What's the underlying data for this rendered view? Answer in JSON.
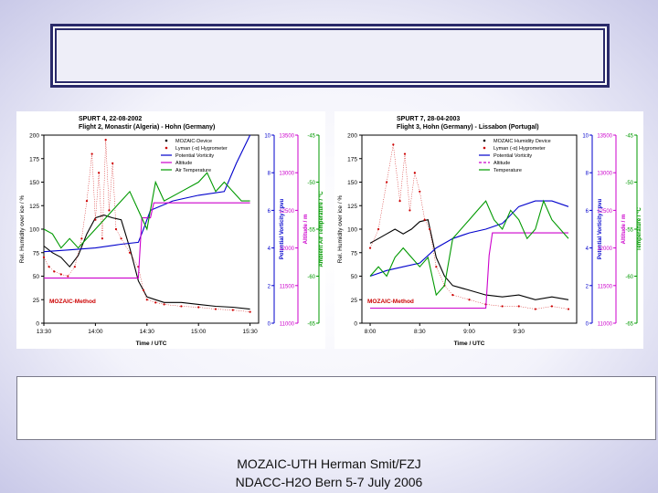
{
  "footer": {
    "line1": "MOZAIC-UTH Herman Smit/FZJ",
    "line2": "NDACC-H2O Bern 5-7 July 2006"
  },
  "chart_data": [
    {
      "type": "line",
      "title": "SPURT 4, 22-08-2002",
      "subtitle": "Flight 2, Monastir (Algeria) - Hohn (Germany)",
      "xlabel": "Time / UTC",
      "x_ticks": [
        "13:30",
        "14:00",
        "14:30",
        "15:00",
        "15:30"
      ],
      "xlim": [
        "13:30",
        "15:35"
      ],
      "annotation": "MOZAIC-Method",
      "axes": {
        "rh": {
          "label": "Rel. Humidity over ice / %",
          "lim": [
            0,
            200
          ],
          "ticks": [
            0,
            25,
            50,
            75,
            100,
            125,
            150,
            175,
            200
          ],
          "color": "#000000"
        },
        "pv": {
          "label": "Potential Vorticity / pvu",
          "lim": [
            0,
            10
          ],
          "ticks": [
            0,
            2,
            4,
            6,
            8,
            10
          ],
          "color": "#0000cc"
        },
        "alt": {
          "label": "Altitude / m",
          "lim": [
            11000,
            13500
          ],
          "ticks": [
            11000,
            11500,
            12000,
            12500,
            13000,
            13500
          ],
          "color": "#cc00cc"
        },
        "temp": {
          "label": "Ambient Air Temperature / °C",
          "lim": [
            -65,
            -45
          ],
          "ticks": [
            -65,
            -60,
            -55,
            -50,
            -45
          ],
          "color": "#009900"
        }
      },
      "legend": {
        "placement": "top-right",
        "entries": [
          {
            "label": "MOZAIC-Device",
            "style": "dot",
            "color": "#000000"
          },
          {
            "label": "Lyman (-α) Hygrometer",
            "style": "dot",
            "color": "#cc0000"
          },
          {
            "label": "Potential Vorticity",
            "style": "line",
            "color": "#0000cc"
          },
          {
            "label": "Altitude",
            "style": "line",
            "color": "#cc00cc"
          },
          {
            "label": "Air Temperature",
            "style": "line",
            "color": "#009900"
          }
        ]
      },
      "series": [
        {
          "key": "mozaic",
          "axis": "rh",
          "color": "#000000",
          "style": "line",
          "x": [
            "13:30",
            "13:35",
            "13:40",
            "13:45",
            "13:50",
            "13:55",
            "14:00",
            "14:05",
            "14:10",
            "14:15",
            "14:20",
            "14:25",
            "14:30",
            "14:35",
            "14:40",
            "14:50",
            "15:00",
            "15:10",
            "15:20",
            "15:30"
          ],
          "y": [
            82,
            75,
            70,
            60,
            72,
            95,
            112,
            115,
            112,
            110,
            80,
            45,
            28,
            25,
            22,
            22,
            20,
            18,
            17,
            15
          ]
        },
        {
          "key": "lyman",
          "axis": "rh",
          "color": "#cc0000",
          "style": "dots",
          "x": [
            "13:30",
            "13:33",
            "13:36",
            "13:40",
            "13:44",
            "13:48",
            "13:52",
            "13:55",
            "13:58",
            "14:00",
            "14:02",
            "14:04",
            "14:06",
            "14:08",
            "14:10",
            "14:12",
            "14:15",
            "14:20",
            "14:25",
            "14:28",
            "14:30",
            "14:35",
            "14:40",
            "14:50",
            "15:00",
            "15:10",
            "15:20",
            "15:30"
          ],
          "y": [
            70,
            60,
            55,
            52,
            50,
            60,
            90,
            130,
            180,
            110,
            160,
            90,
            195,
            120,
            170,
            100,
            90,
            75,
            60,
            35,
            25,
            22,
            20,
            18,
            17,
            15,
            14,
            12
          ]
        },
        {
          "key": "pv",
          "axis": "pv",
          "color": "#0000cc",
          "style": "line",
          "x": [
            "13:30",
            "13:45",
            "14:00",
            "14:15",
            "14:25",
            "14:28",
            "14:32",
            "14:45",
            "15:00",
            "15:15",
            "15:22",
            "15:30"
          ],
          "y": [
            3.8,
            3.9,
            4.0,
            4.2,
            4.3,
            5.0,
            6.0,
            6.5,
            6.8,
            7.0,
            8.5,
            10.0
          ]
        },
        {
          "key": "alt",
          "axis": "alt",
          "color": "#cc00cc",
          "style": "line",
          "x": [
            "13:30",
            "14:00",
            "14:25",
            "14:27",
            "14:32",
            "14:34",
            "15:30"
          ],
          "y": [
            11600,
            11600,
            11600,
            12400,
            12400,
            12600,
            12600
          ]
        },
        {
          "key": "temp",
          "axis": "temp",
          "color": "#009900",
          "style": "line",
          "x": [
            "13:30",
            "13:35",
            "13:40",
            "13:45",
            "13:50",
            "13:55",
            "14:00",
            "14:05",
            "14:10",
            "14:15",
            "14:20",
            "14:25",
            "14:30",
            "14:35",
            "14:40",
            "14:50",
            "15:00",
            "15:05",
            "15:10",
            "15:15",
            "15:20",
            "15:25",
            "15:30"
          ],
          "y": [
            -55,
            -55.5,
            -57,
            -56,
            -57,
            -56,
            -55,
            -54,
            -53,
            -52,
            -51,
            -53,
            -55,
            -50,
            -52,
            -51,
            -50,
            -49,
            -51,
            -50,
            -51,
            -52,
            -52
          ]
        }
      ]
    },
    {
      "type": "line",
      "title": "SPURT 7, 28-04-2003",
      "subtitle": "Flight 3, Hohn (Germany) - Lissabon (Portugal)",
      "xlabel": "Time / UTC",
      "x_ticks": [
        "8:00",
        "8:30",
        "9:00",
        "9:30"
      ],
      "xlim": [
        "7:55",
        "10:05"
      ],
      "annotation": "MOZAIC-Method",
      "axes": {
        "rh": {
          "label": "Rel. Humidity over ice / %",
          "lim": [
            0,
            200
          ],
          "ticks": [
            0,
            25,
            50,
            75,
            100,
            125,
            150,
            175,
            200
          ],
          "color": "#000000"
        },
        "pv": {
          "label": "Potential Vorticity / pvu",
          "lim": [
            0,
            10
          ],
          "ticks": [
            0,
            2,
            4,
            6,
            8,
            10
          ],
          "color": "#0000cc"
        },
        "alt": {
          "label": "Altitude / m",
          "lim": [
            11000,
            13500
          ],
          "ticks": [
            11000,
            11500,
            12000,
            12500,
            13000,
            13500
          ],
          "color": "#cc00cc"
        },
        "temp": {
          "label": "Temperature / °C",
          "lim": [
            -65,
            -45
          ],
          "ticks": [
            -65,
            -60,
            -55,
            -50,
            -45
          ],
          "color": "#009900"
        }
      },
      "legend": {
        "placement": "top-right",
        "entries": [
          {
            "label": "MOZAIC Humidity Device",
            "style": "dot",
            "color": "#000000"
          },
          {
            "label": "Lyman (-α) Hygrometer",
            "style": "dot",
            "color": "#cc0000"
          },
          {
            "label": "Potential Vorticity",
            "style": "line",
            "color": "#0000cc"
          },
          {
            "label": "Altitude",
            "style": "dash",
            "color": "#cc00cc"
          },
          {
            "label": "Temperature",
            "style": "line",
            "color": "#009900"
          }
        ]
      },
      "series": [
        {
          "key": "mozaic",
          "axis": "rh",
          "color": "#000000",
          "style": "line",
          "x": [
            "8:00",
            "8:05",
            "8:10",
            "8:15",
            "8:20",
            "8:25",
            "8:30",
            "8:35",
            "8:40",
            "8:45",
            "8:50",
            "9:00",
            "9:10",
            "9:20",
            "9:30",
            "9:40",
            "9:50",
            "10:00"
          ],
          "y": [
            85,
            90,
            95,
            100,
            95,
            100,
            108,
            110,
            70,
            50,
            40,
            35,
            30,
            28,
            30,
            25,
            28,
            25
          ]
        },
        {
          "key": "lyman",
          "axis": "rh",
          "color": "#cc0000",
          "style": "dots",
          "x": [
            "8:00",
            "8:05",
            "8:10",
            "8:14",
            "8:18",
            "8:21",
            "8:24",
            "8:27",
            "8:30",
            "8:33",
            "8:36",
            "8:40",
            "8:45",
            "8:50",
            "9:00",
            "9:10",
            "9:20",
            "9:30",
            "9:40",
            "9:50",
            "10:00"
          ],
          "y": [
            80,
            100,
            150,
            190,
            130,
            180,
            120,
            160,
            140,
            110,
            100,
            60,
            40,
            30,
            25,
            20,
            18,
            18,
            15,
            18,
            15
          ]
        },
        {
          "key": "pv",
          "axis": "pv",
          "color": "#0000cc",
          "style": "line",
          "x": [
            "8:00",
            "8:10",
            "8:20",
            "8:30",
            "8:40",
            "8:50",
            "9:00",
            "9:10",
            "9:20",
            "9:30",
            "9:40",
            "9:50",
            "10:00"
          ],
          "y": [
            2.5,
            2.8,
            3.0,
            3.2,
            4.0,
            4.5,
            4.8,
            5.0,
            5.3,
            6.2,
            6.5,
            6.5,
            6.2
          ]
        },
        {
          "key": "alt",
          "axis": "alt",
          "color": "#cc00cc",
          "style": "line",
          "x": [
            "8:00",
            "8:30",
            "9:00",
            "9:10",
            "9:12",
            "9:14",
            "10:00"
          ],
          "y": [
            11200,
            11200,
            11200,
            11200,
            11900,
            12200,
            12200
          ]
        },
        {
          "key": "temp",
          "axis": "temp",
          "color": "#009900",
          "style": "line",
          "x": [
            "8:00",
            "8:05",
            "8:10",
            "8:15",
            "8:20",
            "8:25",
            "8:30",
            "8:35",
            "8:40",
            "8:45",
            "8:50",
            "9:00",
            "9:05",
            "9:10",
            "9:15",
            "9:20",
            "9:25",
            "9:30",
            "9:35",
            "9:40",
            "9:45",
            "9:50",
            "10:00"
          ],
          "y": [
            -60,
            -59,
            -60,
            -58,
            -57,
            -58,
            -59,
            -58,
            -62,
            -61,
            -56,
            -54,
            -53,
            -52,
            -54,
            -55,
            -53,
            -54,
            -56,
            -55,
            -52,
            -54,
            -56
          ]
        }
      ]
    }
  ]
}
